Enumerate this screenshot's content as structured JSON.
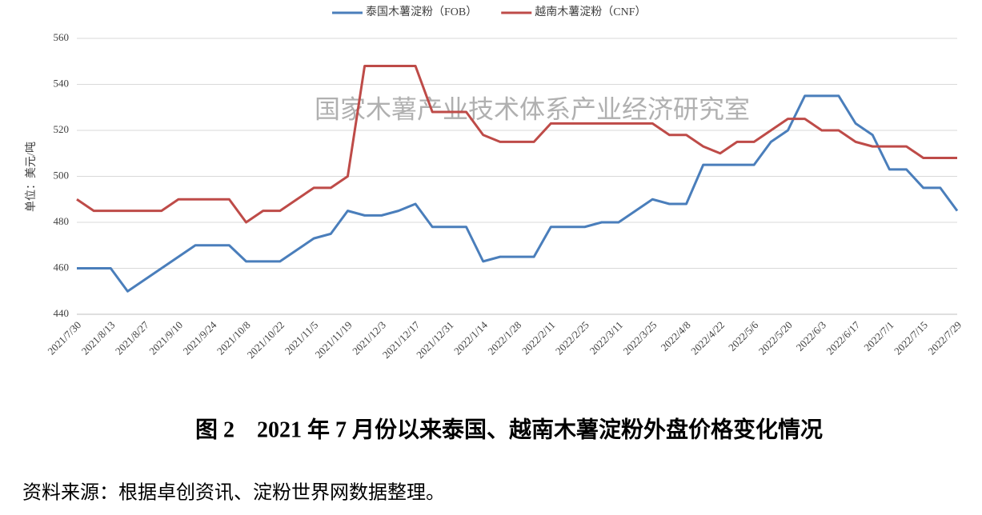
{
  "chart_data": {
    "type": "line",
    "watermark": "国家木薯产业技术体系产业经济研究室",
    "y_label": "单位：美元/吨",
    "caption": "图 2　2021 年 7 月份以来泰国、越南木薯淀粉外盘价格变化情况",
    "source": "资料来源：根据卓创资讯、淀粉世界网数据整理。",
    "categories": [
      "2021/7/30",
      null,
      "2021/8/13",
      null,
      "2021/8/27",
      null,
      "2021/9/10",
      null,
      "2021/9/24",
      null,
      "2021/10/8",
      null,
      "2021/10/22",
      null,
      "2021/11/5",
      null,
      "2021/11/19",
      null,
      "2021/12/3",
      null,
      "2021/12/17",
      null,
      "2021/12/31",
      null,
      "2022/1/14",
      null,
      "2022/1/28",
      null,
      "2022/2/11",
      null,
      "2022/2/25",
      null,
      "2022/3/11",
      null,
      "2022/3/25",
      null,
      "2022/4/8",
      null,
      "2022/4/22",
      null,
      "2022/5/6",
      null,
      "2022/5/20",
      null,
      "2022/6/3",
      null,
      "2022/6/17",
      null,
      "2022/7/1",
      null,
      "2022/7/15",
      null,
      "2022/7/29"
    ],
    "series": [
      {
        "name": "泰国木薯淀粉（FOB）",
        "color": "#4a7ebb",
        "values": [
          460,
          460,
          460,
          450,
          455,
          460,
          465,
          470,
          470,
          470,
          463,
          463,
          463,
          468,
          473,
          475,
          485,
          483,
          483,
          485,
          488,
          478,
          478,
          478,
          463,
          465,
          465,
          465,
          478,
          478,
          478,
          480,
          480,
          485,
          490,
          488,
          488,
          505,
          505,
          505,
          505,
          515,
          520,
          535,
          535,
          535,
          523,
          518,
          503,
          503,
          495,
          495,
          485
        ]
      },
      {
        "name": "越南木薯淀粉（CNF）",
        "color": "#be4b48",
        "values": [
          490,
          485,
          485,
          485,
          485,
          485,
          490,
          490,
          490,
          490,
          480,
          485,
          485,
          490,
          495,
          495,
          500,
          548,
          548,
          548,
          548,
          528,
          528,
          528,
          518,
          515,
          515,
          515,
          523,
          523,
          523,
          523,
          523,
          523,
          523,
          518,
          518,
          513,
          510,
          515,
          515,
          520,
          525,
          525,
          520,
          520,
          515,
          513,
          513,
          513,
          508,
          508,
          508
        ]
      }
    ],
    "ylim": [
      440,
      560
    ],
    "yticks": [
      440,
      460,
      480,
      500,
      520,
      540,
      560
    ],
    "grid": true,
    "legend": "top"
  }
}
